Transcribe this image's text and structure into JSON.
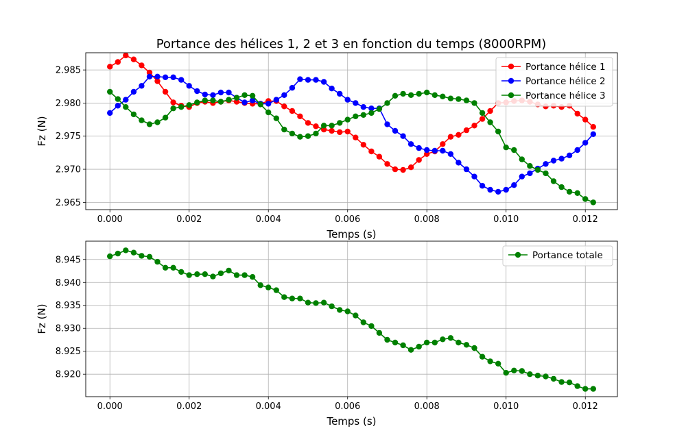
{
  "title": "Portance des hélices 1, 2 et 3 en fonction du temps (8000RPM)",
  "chart_data": [
    {
      "type": "line",
      "xlabel": "Temps (s)",
      "ylabel": "Fz (N)",
      "xlim": [
        -0.00061,
        0.01281
      ],
      "ylim": [
        2.9639,
        2.9876
      ],
      "xticks": [
        0.0,
        0.002,
        0.004,
        0.006,
        0.008,
        0.01,
        0.012
      ],
      "xtick_labels": [
        "0.000",
        "0.002",
        "0.004",
        "0.006",
        "0.008",
        "0.010",
        "0.012"
      ],
      "yticks": [
        2.965,
        2.97,
        2.975,
        2.98,
        2.985
      ],
      "ytick_labels": [
        "2.965",
        "2.970",
        "2.975",
        "2.980",
        "2.985"
      ],
      "grid": true,
      "legend_position": "top-right",
      "x": [
        0.0,
        0.0002,
        0.0004,
        0.0006,
        0.0008,
        0.001,
        0.0012,
        0.0014,
        0.0016,
        0.0018,
        0.002,
        0.0022,
        0.0024,
        0.0026,
        0.0028,
        0.003,
        0.0032,
        0.0034,
        0.0036,
        0.0038,
        0.004,
        0.0042,
        0.0044,
        0.0046,
        0.0048,
        0.005,
        0.0052,
        0.0054,
        0.0056,
        0.0058,
        0.006,
        0.0062,
        0.0064,
        0.0066,
        0.0068,
        0.007,
        0.0072,
        0.0074,
        0.0076,
        0.0078,
        0.008,
        0.0082,
        0.0084,
        0.0086,
        0.0088,
        0.009,
        0.0092,
        0.0094,
        0.0096,
        0.0098,
        0.01,
        0.0102,
        0.0104,
        0.0106,
        0.0108,
        0.011,
        0.0112,
        0.0114,
        0.0116,
        0.0118,
        0.012,
        0.0122
      ],
      "series": [
        {
          "name": "Portance hélice 1",
          "color": "#ff0000",
          "values": [
            2.9855,
            2.9862,
            2.9872,
            2.9866,
            2.9857,
            2.9846,
            2.9833,
            2.9817,
            2.9801,
            2.9796,
            2.9794,
            2.98,
            2.9802,
            2.98,
            2.9802,
            2.9804,
            2.9802,
            2.98,
            2.9799,
            2.9799,
            2.9803,
            2.9803,
            2.9795,
            2.9788,
            2.978,
            2.977,
            2.9765,
            2.976,
            2.9758,
            2.9756,
            2.9757,
            2.9748,
            2.9737,
            2.9727,
            2.9719,
            2.9708,
            2.97,
            2.9699,
            2.9703,
            2.9714,
            2.9723,
            2.9727,
            2.9738,
            2.9749,
            2.9752,
            2.9759,
            2.9766,
            2.9776,
            2.9788,
            2.98,
            2.9801,
            2.9803,
            2.9804,
            2.9802,
            2.9798,
            2.9795,
            2.9796,
            2.9794,
            2.9796,
            2.9784,
            2.9775,
            2.9764
          ]
        },
        {
          "name": "Portance hélice 2",
          "color": "#0000ff",
          "values": [
            2.9785,
            2.9796,
            2.9805,
            2.9817,
            2.9826,
            2.984,
            2.984,
            2.9839,
            2.9839,
            2.9835,
            2.9826,
            2.9818,
            2.9813,
            2.9812,
            2.9816,
            2.9816,
            2.9808,
            2.9801,
            2.9804,
            2.9799,
            2.9799,
            2.9805,
            2.9812,
            2.9823,
            2.9836,
            2.9835,
            2.9835,
            2.9832,
            2.9822,
            2.9814,
            2.9805,
            2.98,
            2.9794,
            2.9792,
            2.9792,
            2.9768,
            2.9758,
            2.975,
            2.9738,
            2.9732,
            2.9729,
            2.9728,
            2.9728,
            2.9723,
            2.971,
            2.97,
            2.9689,
            2.9675,
            2.9669,
            2.9666,
            2.9669,
            2.9676,
            2.9689,
            2.9694,
            2.9701,
            2.9708,
            2.9713,
            2.9716,
            2.9721,
            2.9729,
            2.974,
            2.9753
          ]
        },
        {
          "name": "Portance hélice 3",
          "color": "#008000",
          "values": [
            2.9817,
            2.9806,
            2.9794,
            2.9783,
            2.9774,
            2.9768,
            2.9771,
            2.9778,
            2.9792,
            2.9794,
            2.9797,
            2.9801,
            2.9804,
            2.9804,
            2.9802,
            2.9805,
            2.9808,
            2.9812,
            2.9811,
            2.9798,
            2.9786,
            2.9777,
            2.976,
            2.9754,
            2.9749,
            2.975,
            2.9754,
            2.9766,
            2.9766,
            2.977,
            2.9775,
            2.978,
            2.9782,
            2.9785,
            2.9791,
            2.98,
            2.9811,
            2.9814,
            2.9812,
            2.9814,
            2.9816,
            2.9812,
            2.981,
            2.9807,
            2.9806,
            2.9804,
            2.98,
            2.9785,
            2.9771,
            2.9757,
            2.9733,
            2.9729,
            2.9715,
            2.9705,
            2.9699,
            2.9694,
            2.9682,
            2.9673,
            2.9666,
            2.9664,
            2.9655,
            2.965
          ]
        }
      ]
    },
    {
      "type": "line",
      "xlabel": "Temps (s)",
      "ylabel": "Fz (N)",
      "xlim": [
        -0.00061,
        0.01281
      ],
      "ylim": [
        8.9151,
        8.949
      ],
      "xticks": [
        0.0,
        0.002,
        0.004,
        0.006,
        0.008,
        0.01,
        0.012
      ],
      "xtick_labels": [
        "0.000",
        "0.002",
        "0.004",
        "0.006",
        "0.008",
        "0.010",
        "0.012"
      ],
      "yticks": [
        8.92,
        8.925,
        8.93,
        8.935,
        8.94,
        8.945
      ],
      "ytick_labels": [
        "8.920",
        "8.925",
        "8.930",
        "8.935",
        "8.940",
        "8.945"
      ],
      "grid": true,
      "legend_position": "top-right",
      "x": [
        0.0,
        0.0002,
        0.0004,
        0.0006,
        0.0008,
        0.001,
        0.0012,
        0.0014,
        0.0016,
        0.0018,
        0.002,
        0.0022,
        0.0024,
        0.0026,
        0.0028,
        0.003,
        0.0032,
        0.0034,
        0.0036,
        0.0038,
        0.004,
        0.0042,
        0.0044,
        0.0046,
        0.0048,
        0.005,
        0.0052,
        0.0054,
        0.0056,
        0.0058,
        0.006,
        0.0062,
        0.0064,
        0.0066,
        0.0068,
        0.007,
        0.0072,
        0.0074,
        0.0076,
        0.0078,
        0.008,
        0.0082,
        0.0084,
        0.0086,
        0.0088,
        0.009,
        0.0092,
        0.0094,
        0.0096,
        0.0098,
        0.01,
        0.0102,
        0.0104,
        0.0106,
        0.0108,
        0.011,
        0.0112,
        0.0114,
        0.0116,
        0.0118,
        0.012,
        0.0122
      ],
      "series": [
        {
          "name": "Portance totale",
          "color": "#008000",
          "values": [
            8.9457,
            8.9463,
            8.947,
            8.9465,
            8.9458,
            8.9456,
            8.9445,
            8.9432,
            8.9432,
            8.9423,
            8.9416,
            8.9418,
            8.9418,
            8.9413,
            8.942,
            8.9426,
            8.9416,
            8.9416,
            8.9412,
            8.9394,
            8.9389,
            8.9383,
            8.9368,
            8.9365,
            8.9365,
            8.9356,
            8.9355,
            8.9356,
            8.9348,
            8.934,
            8.9337,
            8.9328,
            8.9313,
            8.9305,
            8.929,
            8.9275,
            8.9269,
            8.9263,
            8.9253,
            8.926,
            8.9269,
            8.9269,
            8.9276,
            8.9279,
            8.9269,
            8.9264,
            8.9257,
            8.9238,
            8.9228,
            8.9223,
            8.9203,
            8.9208,
            8.9207,
            8.92,
            8.9197,
            8.9195,
            8.919,
            8.9183,
            8.9182,
            8.9174,
            8.9168,
            8.9168
          ]
        }
      ]
    }
  ]
}
